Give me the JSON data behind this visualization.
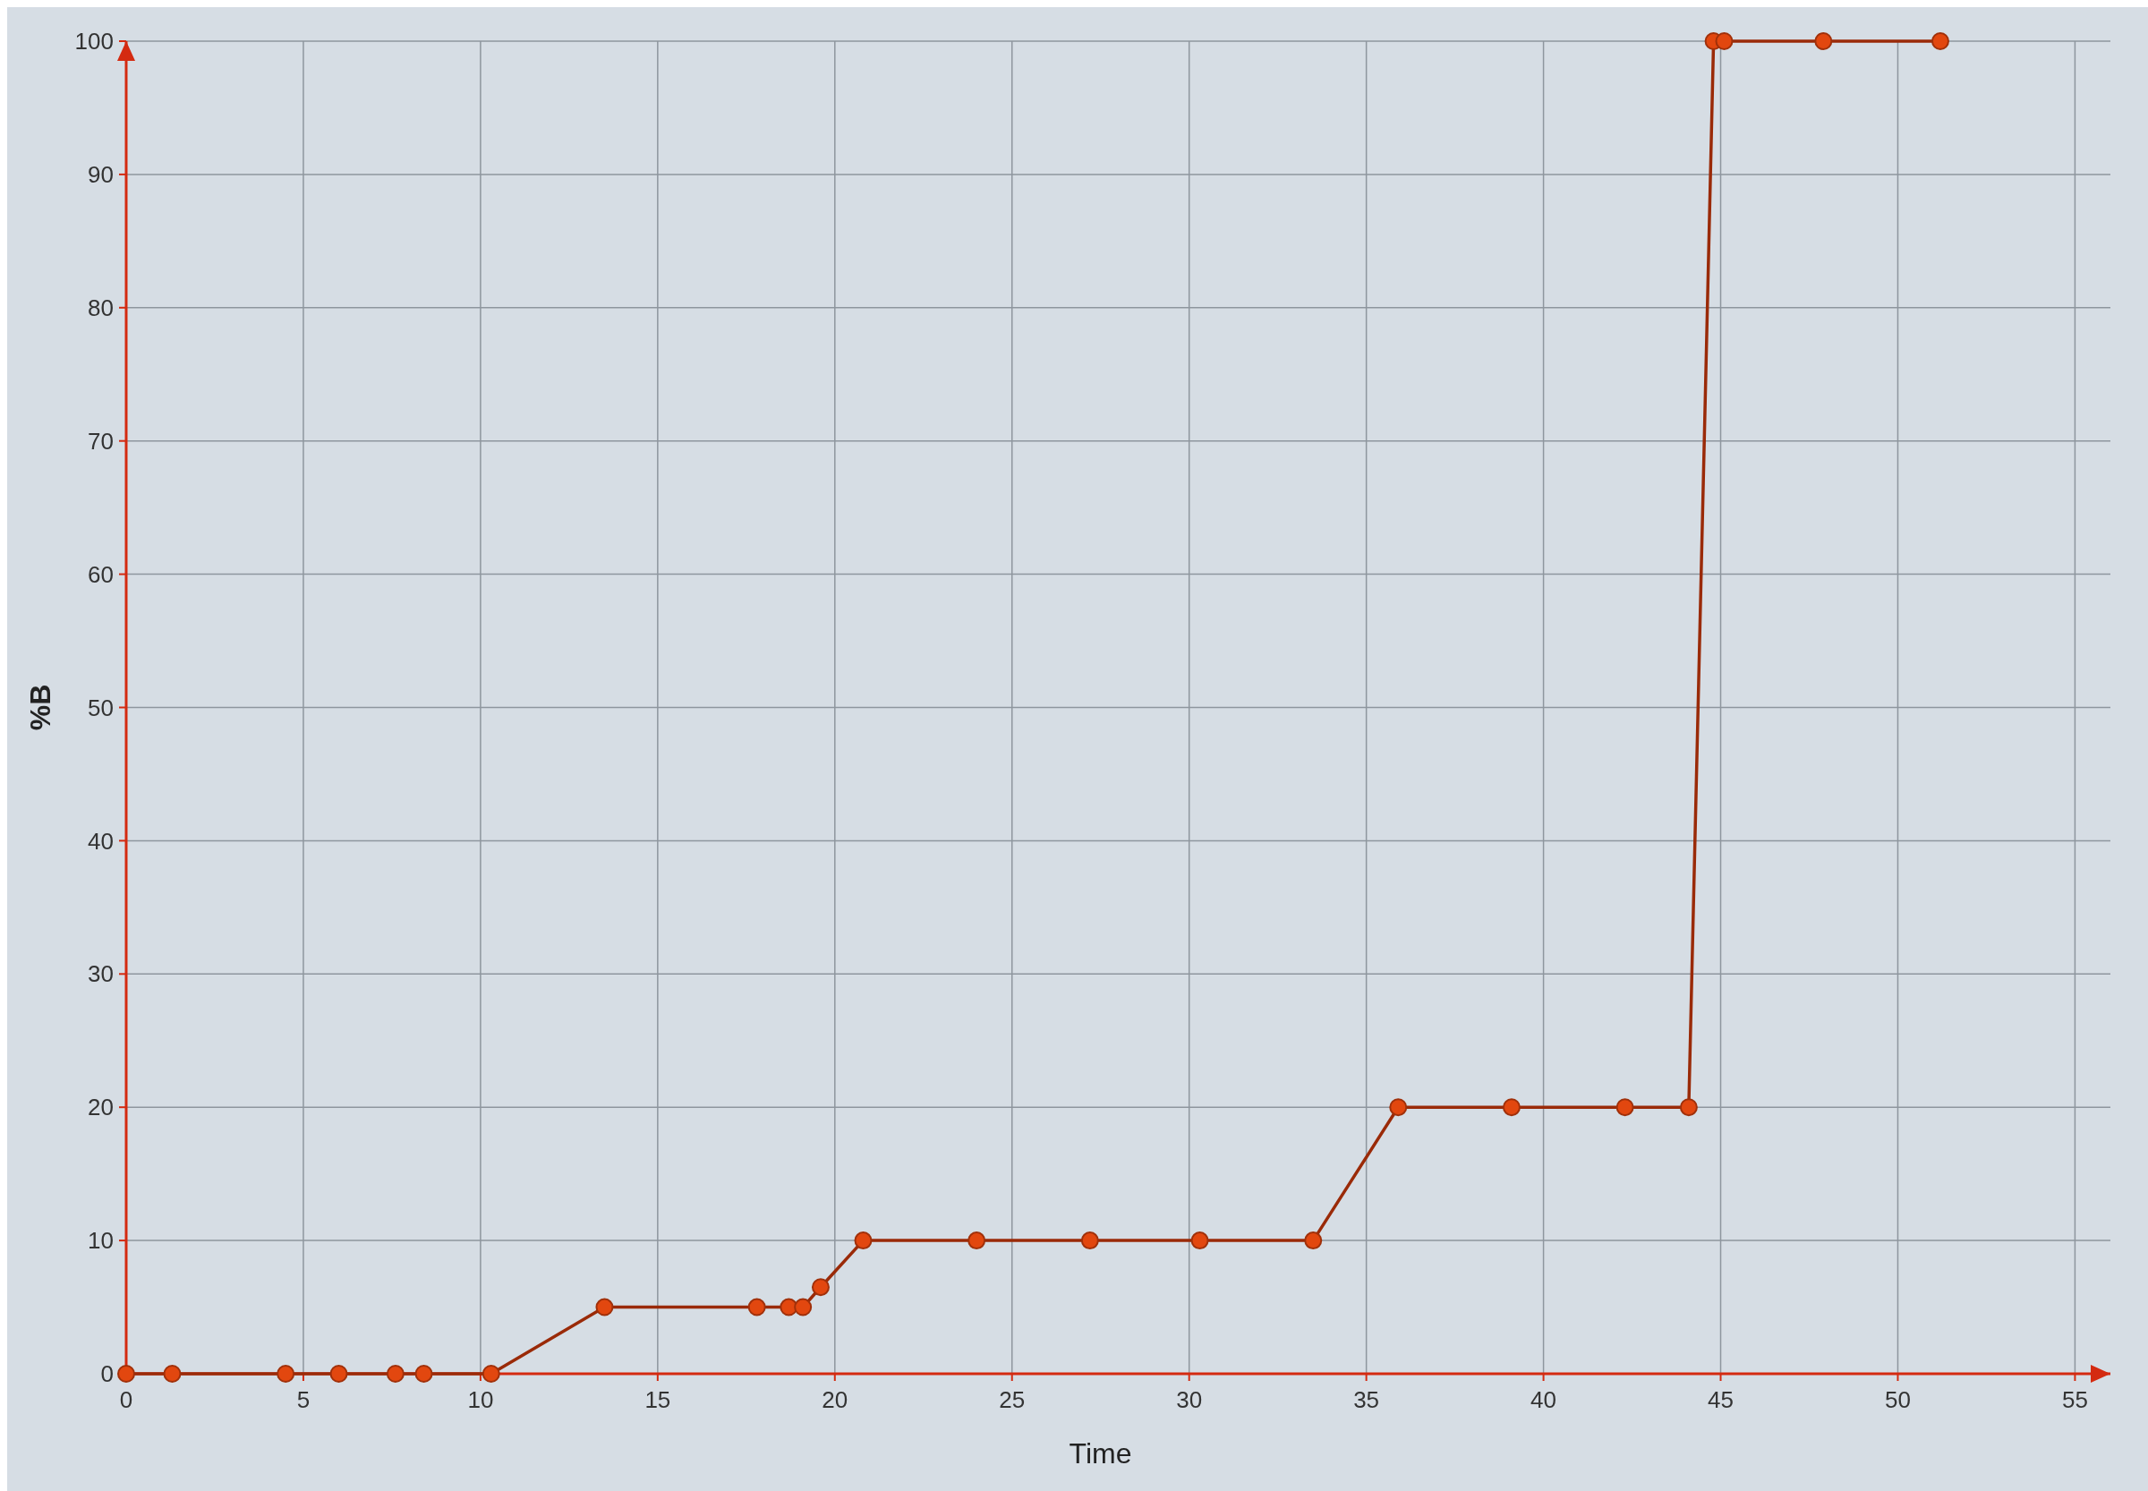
{
  "chart_data": {
    "type": "line",
    "xlabel": "Time",
    "ylabel": "%B",
    "x": [
      0,
      1.3,
      4.5,
      6.0,
      7.6,
      8.4,
      10.3,
      13.5,
      17.8,
      18.7,
      19.1,
      19.6,
      20.8,
      24.0,
      27.2,
      30.3,
      33.5,
      35.9,
      39.1,
      42.3,
      44.1,
      44.8,
      45.1,
      47.9,
      51.2
    ],
    "series": [
      {
        "color": "#e2470f",
        "values": [
          0,
          0,
          0,
          0,
          0,
          0,
          0,
          5,
          5,
          5,
          5,
          6.5,
          10,
          10,
          10,
          10,
          10,
          20,
          20,
          20,
          20,
          100,
          100,
          100,
          100
        ]
      }
    ],
    "xlim": [
      0,
      56
    ],
    "xticks": [
      0,
      5,
      10,
      15,
      20,
      25,
      30,
      35,
      40,
      45,
      50,
      55
    ],
    "ylim": [
      0,
      100
    ],
    "yticks": [
      0,
      10,
      20,
      30,
      40,
      50,
      60,
      70,
      80,
      90,
      100
    ],
    "grid": true,
    "marker": "circle",
    "line_style": "solid"
  }
}
